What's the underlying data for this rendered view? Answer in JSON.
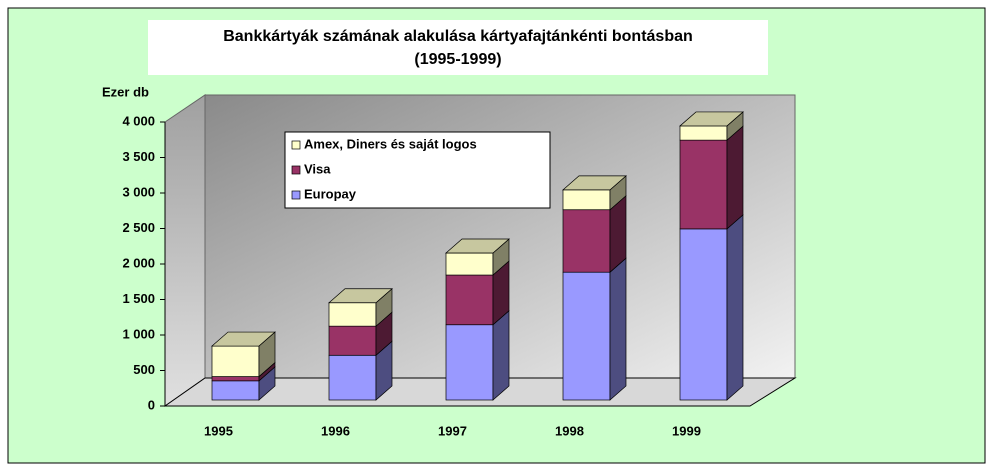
{
  "chart_data": {
    "type": "bar3d_stacked",
    "title": "Bankkártyák számának alakulása kártyafajtánkénti bontásban",
    "subtitle": "(1995-1999)",
    "ylabel": "Ezer db",
    "categories": [
      "1995",
      "1996",
      "1997",
      "1998",
      "1999"
    ],
    "series": [
      {
        "name": "Europay",
        "color": "#9999ff",
        "values": [
          270,
          630,
          1060,
          1800,
          2410
        ]
      },
      {
        "name": "Visa",
        "color": "#993366",
        "values": [
          60,
          410,
          700,
          880,
          1250
        ]
      },
      {
        "name": "Amex, Diners és saját logos",
        "color": "#ffffcc",
        "values": [
          430,
          330,
          310,
          280,
          200
        ]
      }
    ],
    "ylim": [
      0,
      4000
    ],
    "yticks": [
      0,
      500,
      {
        "value": 1000,
        "label": "1 000"
      },
      {
        "value": 1500,
        "label": "1 500"
      },
      {
        "value": 2000,
        "label": "2 000"
      },
      {
        "value": 2500,
        "label": "2 500"
      },
      {
        "value": 3000,
        "label": "3 000"
      },
      {
        "value": 3500,
        "label": "3 500"
      },
      {
        "value": 4000,
        "label": "4 000"
      }
    ],
    "legend": "top-left"
  }
}
